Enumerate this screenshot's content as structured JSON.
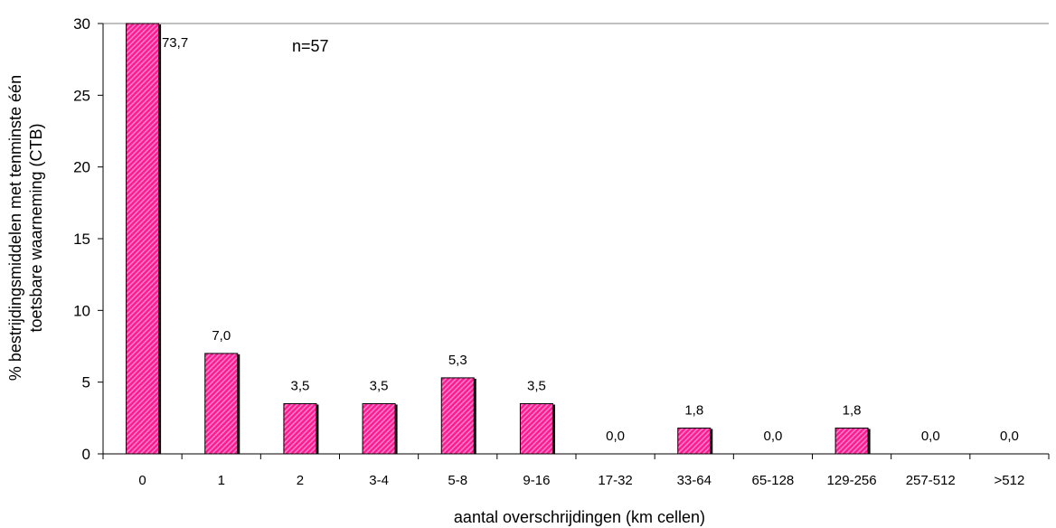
{
  "chart_data": {
    "type": "bar",
    "title": "",
    "xlabel": "aantal overschrijdingen (km cellen)",
    "ylabel_line1": "% bestrijdingsmiddelen met tenminste één",
    "ylabel_line2": "toetsbare waarneming (CTB)",
    "annotation": "n=57",
    "categories": [
      "0",
      "1",
      "2",
      "3-4",
      "5-8",
      "9-16",
      "17-32",
      "33-64",
      "65-128",
      "129-256",
      "257-512",
      ">512"
    ],
    "values": [
      73.7,
      7.0,
      3.5,
      3.5,
      5.3,
      3.5,
      0.0,
      1.8,
      0.0,
      1.8,
      0.0,
      0.0
    ],
    "value_labels": [
      "73,7",
      "7,0",
      "3,5",
      "3,5",
      "5,3",
      "3,5",
      "0,0",
      "1,8",
      "0,0",
      "1,8",
      "0,0",
      "0,0"
    ],
    "ylim": [
      0,
      30
    ],
    "yticks": [
      0,
      5,
      10,
      15,
      20,
      25,
      30
    ],
    "ytick_labels": [
      "0",
      "5",
      "10",
      "15",
      "20",
      "25",
      "30"
    ],
    "grid": false,
    "legend": "none",
    "bar_color": "#ff1493",
    "bar_highlight": "#ff66cc"
  }
}
